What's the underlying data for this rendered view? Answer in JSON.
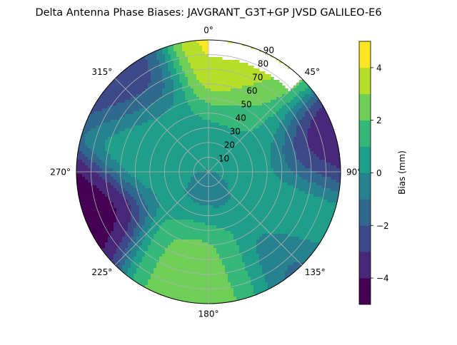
{
  "chart_data": {
    "type": "heatmap",
    "subtype": "polar-filled-contour",
    "title": "Delta Antenna Phase Biases: JAVGRANT_G3T+GP JVSD GALILEO-E6",
    "angular_ticks": [
      {
        "deg": 0,
        "label": "0°"
      },
      {
        "deg": 45,
        "label": "45°"
      },
      {
        "deg": 90,
        "label": "90°"
      },
      {
        "deg": 135,
        "label": "135°"
      },
      {
        "deg": 180,
        "label": "180°"
      },
      {
        "deg": 225,
        "label": "225°"
      },
      {
        "deg": 270,
        "label": "270°"
      },
      {
        "deg": 315,
        "label": "315°"
      }
    ],
    "radial_ticks": [
      10,
      20,
      30,
      40,
      50,
      60,
      70,
      80,
      90
    ],
    "radial_label_angle_deg": 22.5,
    "rlim": [
      0,
      90
    ],
    "colorbar": {
      "label": "Bias (mm)",
      "range": [
        -5,
        5
      ],
      "ticks": [
        {
          "value": -4,
          "label": "−4"
        },
        {
          "value": -2,
          "label": "−2"
        },
        {
          "value": 0,
          "label": "0"
        },
        {
          "value": 2,
          "label": "2"
        },
        {
          "value": 4,
          "label": "4"
        }
      ],
      "levels": [
        -5,
        -4,
        -3,
        -2,
        -1,
        0,
        1,
        2,
        3,
        4,
        5
      ],
      "colors": [
        "#440154",
        "#482878",
        "#3e4989",
        "#31688e",
        "#26828e",
        "#1f9e89",
        "#35b779",
        "#6ece58",
        "#b5de2b",
        "#fde725"
      ]
    },
    "missing_region": {
      "az_range_deg": [
        0,
        45
      ],
      "elev_range_deg": [
        0,
        12
      ],
      "note": "unfilled (white) at low elevation"
    },
    "field_features": [
      {
        "az_deg": 0,
        "radius_deg": 85,
        "bias_mm": 4.5
      },
      {
        "az_deg": 25,
        "radius_deg": 78,
        "bias_mm": 3.2
      },
      {
        "az_deg": 80,
        "radius_deg": 78,
        "bias_mm": -4.2
      },
      {
        "az_deg": 322,
        "radius_deg": 82,
        "bias_mm": -3.0
      },
      {
        "az_deg": 245,
        "radius_deg": 88,
        "bias_mm": -4.5
      },
      {
        "az_deg": 170,
        "radius_deg": 80,
        "bias_mm": 2.5
      },
      {
        "az_deg": 200,
        "radius_deg": 70,
        "bias_mm": 2.3
      },
      {
        "az_deg": 112,
        "radius_deg": 68,
        "bias_mm": 1.8
      },
      {
        "az_deg": 140,
        "radius_deg": 82,
        "bias_mm": -1.8
      },
      {
        "az_deg": 300,
        "radius_deg": 40,
        "bias_mm": 1.2
      },
      {
        "az_deg": 50,
        "radius_deg": 35,
        "bias_mm": 1.2
      },
      {
        "az_deg": 0,
        "radius_deg": 0,
        "bias_mm": -0.5
      }
    ]
  }
}
